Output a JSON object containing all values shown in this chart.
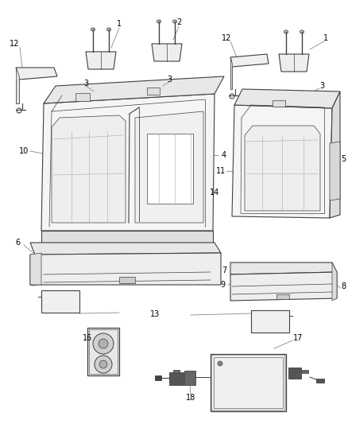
{
  "bg_color": "#ffffff",
  "lc": "#404040",
  "lc_light": "#888888",
  "lw_main": 0.8,
  "lw_thin": 0.5,
  "label_fs": 7,
  "label_color": "#000000",
  "leader_color": "#888888"
}
